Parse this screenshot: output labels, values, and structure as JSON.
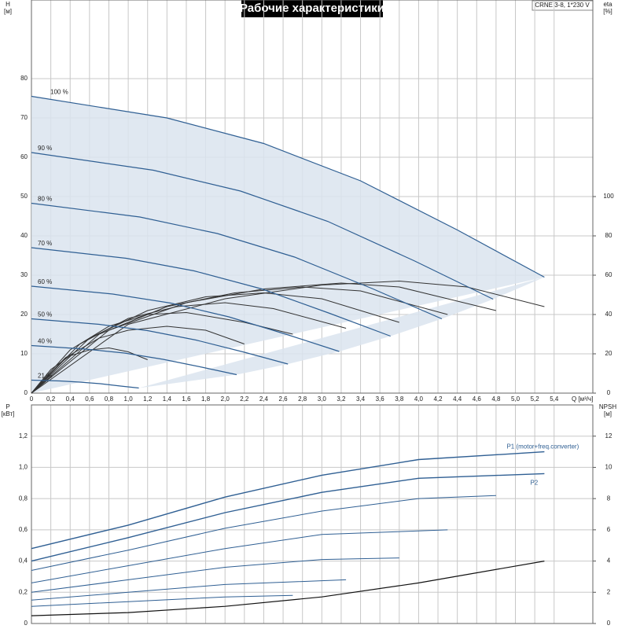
{
  "chart_data": [
    {
      "type": "line",
      "title": "Рабочие характеристики",
      "model": "CRNE 3-8, 1*230 V",
      "ylabel": "H",
      "yunit": "[м]",
      "y2label": "eta",
      "y2unit": "[%]",
      "xlabel": "Q [м³/ч]",
      "xlim": [
        0,
        5.8
      ],
      "ylim": [
        0,
        100
      ],
      "y2lim": [
        0,
        200
      ],
      "xticks": [
        0,
        {
          "value": 0.2,
          "label": "0,2"
        },
        {
          "value": 0.4,
          "label": "0,4"
        },
        {
          "value": 0.6,
          "label": "0,6"
        },
        {
          "value": 0.8,
          "label": "0,8"
        },
        {
          "value": 1,
          "label": "1,0"
        },
        {
          "value": 1.2,
          "label": "1,2"
        },
        {
          "value": 1.4,
          "label": "1,4"
        },
        {
          "value": 1.6,
          "label": "1,6"
        },
        {
          "value": 1.8,
          "label": "1,8"
        },
        {
          "value": 2,
          "label": "2,0"
        },
        {
          "value": 2.2,
          "label": "2,2"
        },
        {
          "value": 2.4,
          "label": "2,4"
        },
        {
          "value": 2.6,
          "label": "2,6"
        },
        {
          "value": 2.8,
          "label": "2,8"
        },
        {
          "value": 3,
          "label": "3,0"
        },
        {
          "value": 3.2,
          "label": "3,2"
        },
        {
          "value": 3.4,
          "label": "3,4"
        },
        {
          "value": 3.6,
          "label": "3,6"
        },
        {
          "value": 3.8,
          "label": "3,8"
        },
        {
          "value": 4,
          "label": "4,0"
        },
        {
          "value": 4.2,
          "label": "4,2"
        },
        {
          "value": 4.4,
          "label": "4,4"
        },
        {
          "value": 4.6,
          "label": "4,6"
        },
        {
          "value": 4.8,
          "label": "4,8"
        },
        {
          "value": 5,
          "label": "5,0"
        },
        {
          "value": 5.2,
          "label": "5,2"
        },
        {
          "value": 5.4,
          "label": "5,4"
        }
      ],
      "yticks": [
        0,
        10,
        20,
        30,
        40,
        50,
        60,
        70,
        80
      ],
      "y2ticks": [
        0,
        20,
        40,
        60,
        80,
        100
      ],
      "color": "#2f5f93",
      "fill": "#dbe4ee",
      "eta_color": "#333333",
      "series": [
        {
          "name": "100 %",
          "x": [
            0,
            1.4,
            2.4,
            3.4,
            4.4,
            5.3
          ],
          "values": [
            75.5,
            70,
            63.5,
            54,
            41.5,
            29.5
          ]
        },
        {
          "name": "90 %",
          "x": [
            0,
            1.26,
            2.16,
            3.06,
            3.96,
            4.77
          ],
          "values": [
            61.2,
            56.7,
            51.4,
            43.7,
            33.6,
            23.9
          ]
        },
        {
          "name": "80 %",
          "x": [
            0,
            1.12,
            1.92,
            2.72,
            3.52,
            4.24
          ],
          "values": [
            48.3,
            44.8,
            40.6,
            34.6,
            26.6,
            18.9
          ]
        },
        {
          "name": "70 %",
          "x": [
            0,
            0.98,
            1.68,
            2.38,
            3.08,
            3.71
          ],
          "values": [
            37,
            34.3,
            31.1,
            26.5,
            20.3,
            14.5
          ]
        },
        {
          "name": "60 %",
          "x": [
            0,
            0.84,
            1.44,
            2.04,
            2.64,
            3.18
          ],
          "values": [
            27.2,
            25.2,
            22.9,
            19.4,
            14.9,
            10.6
          ]
        },
        {
          "name": "50 %",
          "x": [
            0,
            0.7,
            1.2,
            1.7,
            2.2,
            2.65
          ],
          "values": [
            18.9,
            17.5,
            15.9,
            13.5,
            10.4,
            7.4
          ]
        },
        {
          "name": "40 %",
          "x": [
            0,
            0.56,
            0.96,
            1.36,
            1.76,
            2.12
          ],
          "values": [
            12.1,
            11.2,
            10.2,
            8.6,
            6.6,
            4.7
          ]
        },
        {
          "name": "21 %",
          "x": [
            0,
            0.29,
            0.5,
            0.71,
            0.92,
            1.11
          ],
          "values": [
            3.3,
            3.1,
            2.8,
            2.4,
            1.8,
            1.3
          ]
        }
      ],
      "eta_curves": [
        {
          "x": [
            0,
            1,
            2,
            3,
            3.8,
            4.5,
            5.3
          ],
          "values": [
            0,
            35,
            48,
            55,
            57,
            54,
            44
          ]
        },
        {
          "x": [
            0,
            0.8,
            1.6,
            2.4,
            3.2,
            3.8,
            4.8
          ],
          "values": [
            0,
            32,
            46,
            53,
            56,
            54,
            42
          ]
        },
        {
          "x": [
            0,
            0.7,
            1.4,
            2.1,
            2.8,
            3.4,
            4.3
          ],
          "values": [
            0,
            30,
            44,
            51,
            54,
            52,
            40
          ]
        },
        {
          "x": [
            0,
            0.6,
            1.2,
            1.8,
            2.4,
            3,
            3.8
          ],
          "values": [
            0,
            28,
            42,
            49,
            51,
            48,
            36
          ]
        },
        {
          "x": [
            0,
            0.5,
            1,
            1.5,
            2,
            2.5,
            3.25
          ],
          "values": [
            0,
            25,
            38,
            44,
            46,
            43,
            33
          ]
        },
        {
          "x": [
            0,
            0.4,
            0.8,
            1.2,
            1.6,
            2.2,
            2.7
          ],
          "values": [
            0,
            22,
            34,
            40,
            41,
            36,
            30
          ]
        },
        {
          "x": [
            0,
            0.35,
            0.7,
            1,
            1.4,
            1.8,
            2.2
          ],
          "values": [
            0,
            18,
            28,
            32,
            34,
            32,
            25
          ]
        },
        {
          "x": [
            0,
            0.2,
            0.4,
            0.6,
            0.8,
            1,
            1.2
          ],
          "values": [
            0,
            12,
            19,
            22,
            23,
            21,
            17
          ]
        }
      ]
    },
    {
      "type": "line",
      "ylabel": "P",
      "yunit": "[кВт]",
      "y2label": "NPSH",
      "y2unit": "[м]",
      "xlim": [
        0,
        5.8
      ],
      "ylim": [
        0,
        1.4
      ],
      "y2lim": [
        0,
        14
      ],
      "yticks": [
        0,
        {
          "value": 0.2,
          "label": "0,2"
        },
        {
          "value": 0.4,
          "label": "0,4"
        },
        {
          "value": 0.6,
          "label": "0,6"
        },
        {
          "value": 0.8,
          "label": "0,8"
        },
        {
          "value": 1,
          "label": "1,0"
        },
        {
          "value": 1.2,
          "label": "1,2"
        }
      ],
      "y2ticks": [
        0,
        2,
        4,
        6,
        8,
        10,
        12
      ],
      "series": [
        {
          "name": "P1 (motor+freq.converter)",
          "color": "#2f5f93",
          "x": [
            0,
            1,
            2,
            3,
            4,
            5.3
          ],
          "values": [
            0.48,
            0.63,
            0.81,
            0.95,
            1.05,
            1.1
          ]
        },
        {
          "name": "P2",
          "color": "#2f5f93",
          "x": [
            0,
            1,
            2,
            3,
            4,
            5.3
          ],
          "values": [
            0.4,
            0.55,
            0.71,
            0.84,
            0.93,
            0.96
          ]
        }
      ],
      "power_curves": [
        {
          "x": [
            0,
            1,
            2,
            3,
            4,
            4.8
          ],
          "values": [
            0.34,
            0.47,
            0.61,
            0.72,
            0.8,
            0.82
          ]
        },
        {
          "x": [
            0,
            1,
            2,
            3,
            4.3
          ],
          "values": [
            0.26,
            0.37,
            0.48,
            0.57,
            0.6
          ]
        },
        {
          "x": [
            0,
            1,
            2,
            3,
            3.8
          ],
          "values": [
            0.2,
            0.28,
            0.36,
            0.41,
            0.42
          ]
        },
        {
          "x": [
            0,
            1,
            2,
            3.25
          ],
          "values": [
            0.15,
            0.2,
            0.25,
            0.28
          ]
        },
        {
          "x": [
            0,
            1,
            2,
            2.7
          ],
          "values": [
            0.11,
            0.14,
            0.17,
            0.18
          ]
        }
      ],
      "npsh": {
        "x": [
          0,
          1,
          2,
          3,
          4,
          5.3
        ],
        "values": [
          0.5,
          0.7,
          1.1,
          1.7,
          2.6,
          4
        ],
        "color": "#111111"
      }
    }
  ]
}
